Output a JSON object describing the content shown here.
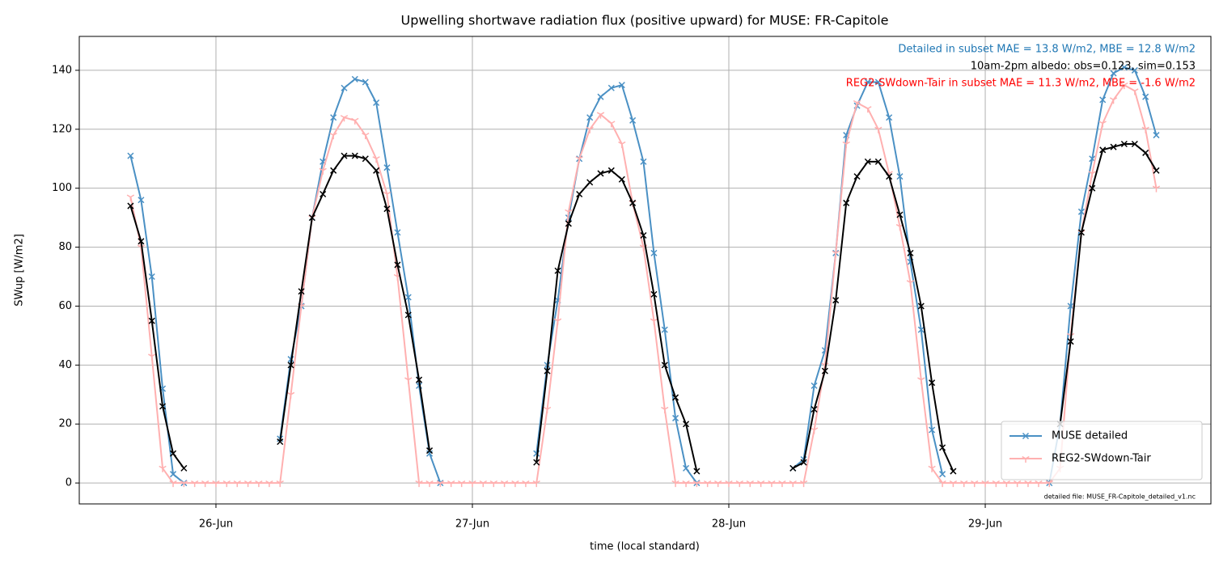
{
  "chart_data": {
    "type": "line",
    "title": "Upwelling shortwave radiation flux (positive upward) for MUSE: FR-Capitole",
    "xlabel": "time (local standard)",
    "ylabel": "SWup [W/m2]",
    "xlim": [
      25.467,
      29.88
    ],
    "ylim": [
      -7.1,
      151.5
    ],
    "xticks": [
      {
        "value": 26,
        "label": "26-Jun"
      },
      {
        "value": 27,
        "label": "27-Jun"
      },
      {
        "value": 28,
        "label": "28-Jun"
      },
      {
        "value": 29,
        "label": "29-Jun"
      }
    ],
    "yticks": [
      0,
      20,
      40,
      60,
      80,
      100,
      120,
      140
    ],
    "grid": true,
    "legend": "lower right",
    "annotations": [
      {
        "text": "Detailed in subset MAE = 13.8 W/m2, MBE = 12.8 W/m2",
        "color": "#1f77b4"
      },
      {
        "text": "10am-2pm albedo: obs=0.123, sim=0.153",
        "color": "#000000"
      },
      {
        "text": "REG2-SWdown-Tair in subset MAE = 11.3 W/m2, MBE = -1.6 W/m2",
        "color": "#ff0000"
      }
    ],
    "footnote": "detailed file: MUSE_FR-Capitole_detailed_v1.nc",
    "x": [
      25.667,
      25.708,
      25.75,
      25.792,
      25.833,
      25.875,
      25.917,
      25.958,
      26,
      26.042,
      26.083,
      26.125,
      26.167,
      26.208,
      26.25,
      26.292,
      26.333,
      26.375,
      26.417,
      26.458,
      26.5,
      26.542,
      26.583,
      26.625,
      26.667,
      26.708,
      26.75,
      26.792,
      26.833,
      26.875,
      26.917,
      26.958,
      27,
      27.042,
      27.083,
      27.125,
      27.167,
      27.208,
      27.25,
      27.292,
      27.333,
      27.375,
      27.417,
      27.458,
      27.5,
      27.542,
      27.583,
      27.625,
      27.667,
      27.708,
      27.75,
      27.792,
      27.833,
      27.875,
      27.917,
      27.958,
      28,
      28.042,
      28.083,
      28.125,
      28.167,
      28.208,
      28.25,
      28.292,
      28.333,
      28.375,
      28.417,
      28.458,
      28.5,
      28.542,
      28.583,
      28.625,
      28.667,
      28.708,
      28.75,
      28.792,
      28.833,
      28.875,
      28.917,
      28.958,
      29,
      29.042,
      29.083,
      29.125,
      29.167,
      29.208,
      29.25,
      29.292,
      29.333,
      29.375,
      29.417,
      29.458,
      29.5,
      29.542,
      29.583,
      29.625,
      29.667
    ],
    "series": [
      {
        "name": "MUSE detailed",
        "color": "#4a90c4",
        "marker": "x",
        "values": [
          111,
          96,
          70,
          32,
          3,
          0,
          null,
          null,
          null,
          null,
          null,
          null,
          null,
          null,
          15,
          42,
          60,
          90,
          109,
          124,
          134,
          137,
          136,
          129,
          107,
          85,
          63,
          33,
          10,
          0,
          null,
          null,
          null,
          null,
          null,
          null,
          null,
          null,
          10,
          40,
          62,
          90,
          110,
          124,
          131,
          134,
          135,
          123,
          109,
          78,
          52,
          22,
          5,
          0,
          null,
          null,
          null,
          null,
          null,
          null,
          null,
          null,
          5,
          8,
          33,
          45,
          78,
          118,
          128,
          136,
          136,
          124,
          104,
          75,
          52,
          18,
          3,
          null,
          null,
          null,
          null,
          null,
          null,
          null,
          null,
          null,
          0,
          20,
          60,
          92,
          110,
          130,
          139,
          141,
          140,
          131,
          118
        ]
      },
      {
        "name": "REG2-SWdown-Tair",
        "color": "#ffb0b0",
        "marker": "tri",
        "values": [
          97,
          80,
          43,
          5,
          0,
          0,
          0,
          0,
          0,
          0,
          0,
          0,
          0,
          0,
          0,
          30,
          60,
          90,
          106,
          118,
          124,
          123,
          118,
          110,
          98,
          70,
          35,
          0,
          0,
          0,
          0,
          0,
          0,
          0,
          0,
          0,
          0,
          0,
          0,
          25,
          55,
          92,
          110,
          120,
          125,
          122,
          115,
          95,
          80,
          55,
          25,
          0,
          0,
          0,
          0,
          0,
          0,
          0,
          0,
          0,
          0,
          0,
          0,
          0,
          18,
          40,
          78,
          115,
          129,
          127,
          120,
          105,
          87,
          68,
          35,
          5,
          0,
          0,
          0,
          0,
          0,
          0,
          0,
          0,
          0,
          0,
          0,
          5,
          50,
          85,
          105,
          122,
          130,
          135,
          133,
          120,
          100
        ]
      },
      {
        "color": "#000000",
        "marker": "x",
        "values": [
          94,
          82,
          55,
          26,
          10,
          5,
          null,
          null,
          null,
          null,
          null,
          null,
          null,
          null,
          14,
          40,
          65,
          90,
          98,
          106,
          111,
          111,
          110,
          106,
          93,
          74,
          57,
          35,
          11,
          null,
          null,
          null,
          null,
          null,
          null,
          null,
          null,
          null,
          7,
          38,
          72,
          88,
          98,
          102,
          105,
          106,
          103,
          95,
          84,
          64,
          40,
          29,
          20,
          4,
          null,
          null,
          null,
          null,
          null,
          null,
          null,
          null,
          5,
          7,
          25,
          38,
          62,
          95,
          104,
          109,
          109,
          104,
          91,
          78,
          60,
          34,
          12,
          4,
          null,
          null,
          null,
          null,
          null,
          null,
          null,
          null,
          null,
          20,
          48,
          85,
          100,
          113,
          114,
          115,
          115,
          112,
          106
        ]
      }
    ]
  }
}
